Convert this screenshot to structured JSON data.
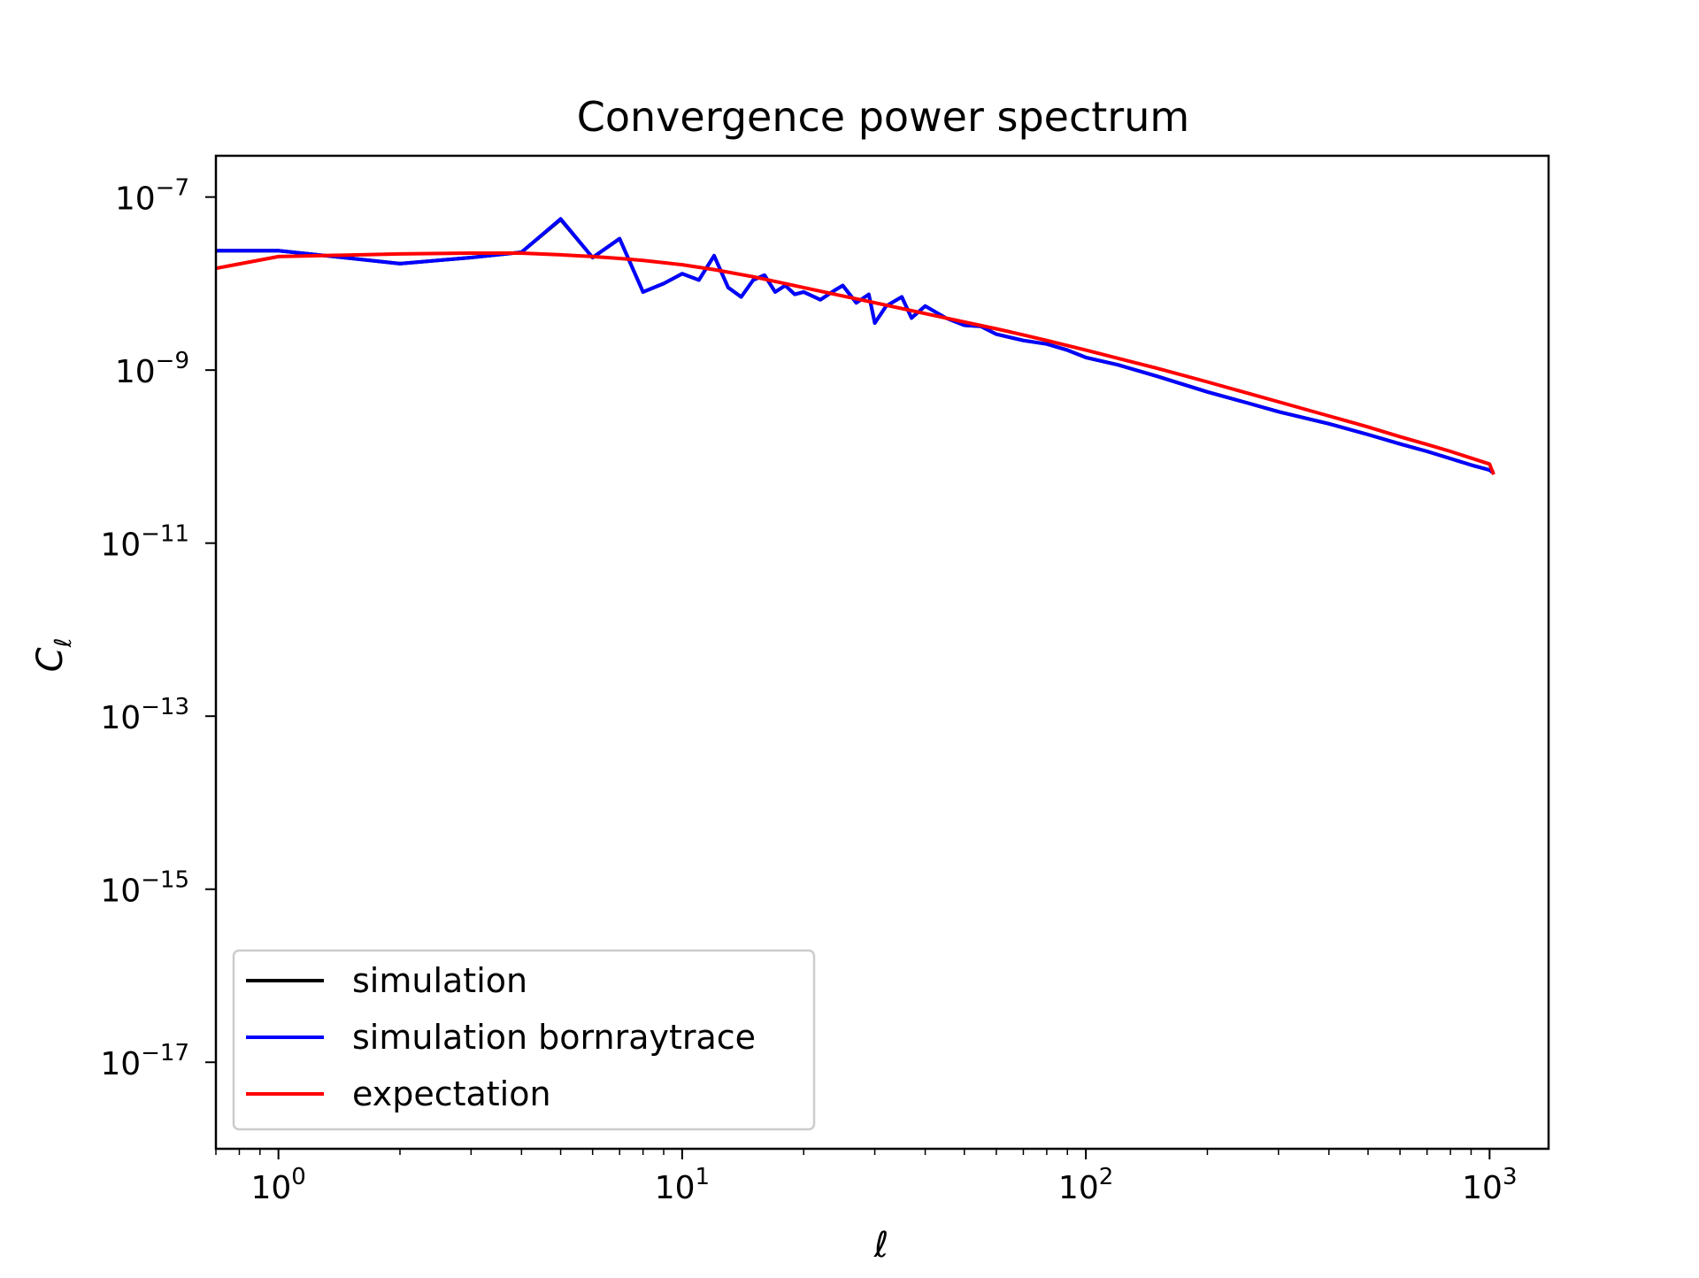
{
  "chart_data": {
    "type": "line",
    "title": "Convergence power spectrum",
    "xlabel": "ℓ",
    "ylabel": "Cℓ",
    "xscale": "log",
    "yscale": "log",
    "xlim": [
      0.7,
      1400
    ],
    "ylim": [
      1e-18,
      3e-07
    ],
    "grid": false,
    "legend_position": "lower-left",
    "x_ticks": [
      {
        "base": "10",
        "exp": "0",
        "value": 1
      },
      {
        "base": "10",
        "exp": "1",
        "value": 10
      },
      {
        "base": "10",
        "exp": "2",
        "value": 100
      },
      {
        "base": "10",
        "exp": "3",
        "value": 1000
      }
    ],
    "y_ticks": [
      {
        "base": "10",
        "exp": "−7",
        "value": 1e-07
      },
      {
        "base": "10",
        "exp": "−9",
        "value": 1e-09
      },
      {
        "base": "10",
        "exp": "−11",
        "value": 1e-11
      },
      {
        "base": "10",
        "exp": "−13",
        "value": 1e-13
      },
      {
        "base": "10",
        "exp": "−15",
        "value": 1e-15
      },
      {
        "base": "10",
        "exp": "−17",
        "value": 1e-17
      }
    ],
    "series": [
      {
        "name": "simulation",
        "color": "#000000",
        "x": [
          0.5,
          1,
          2,
          3,
          4,
          5,
          6,
          7,
          8,
          9,
          10,
          11,
          12,
          13,
          14,
          15,
          16,
          17,
          18,
          19,
          20,
          22,
          24,
          25,
          27,
          29,
          30,
          32,
          35,
          37,
          40,
          45,
          50,
          55,
          60,
          70,
          80,
          90,
          100,
          120,
          150,
          200,
          250,
          300,
          400,
          500,
          600,
          700,
          800,
          900,
          1000,
          1024
        ],
        "y": [
          2.4e-08,
          2.4e-08,
          1.7e-08,
          2e-08,
          2.3e-08,
          5.5e-08,
          2e-08,
          3.3e-08,
          8e-09,
          1e-08,
          1.3e-08,
          1.1e-08,
          2.1e-08,
          9e-09,
          7e-09,
          1.1e-08,
          1.25e-08,
          8e-09,
          9.5e-09,
          7.5e-09,
          8e-09,
          6.5e-09,
          8.5e-09,
          9.5e-09,
          6e-09,
          7.5e-09,
          3.5e-09,
          5.5e-09,
          7e-09,
          4e-09,
          5.5e-09,
          4e-09,
          3.3e-09,
          3.2e-09,
          2.6e-09,
          2.2e-09,
          2e-09,
          1.7e-09,
          1.4e-09,
          1.15e-09,
          8.5e-10,
          5.6e-10,
          4.2e-10,
          3.3e-10,
          2.4e-10,
          1.8e-10,
          1.4e-10,
          1.15e-10,
          9.5e-11,
          8e-11,
          7e-11,
          6.6e-11
        ]
      },
      {
        "name": "simulation bornraytrace",
        "color": "#0000ff",
        "x": [
          0.5,
          1,
          2,
          3,
          4,
          5,
          6,
          7,
          8,
          9,
          10,
          11,
          12,
          13,
          14,
          15,
          16,
          17,
          18,
          19,
          20,
          22,
          24,
          25,
          27,
          29,
          30,
          32,
          35,
          37,
          40,
          45,
          50,
          55,
          60,
          70,
          80,
          90,
          100,
          120,
          150,
          200,
          250,
          300,
          400,
          500,
          600,
          700,
          800,
          900,
          1000,
          1024
        ],
        "y": [
          2.4e-08,
          2.4e-08,
          1.7e-08,
          2e-08,
          2.3e-08,
          5.6e-08,
          2e-08,
          3.3e-08,
          8e-09,
          1e-08,
          1.3e-08,
          1.1e-08,
          2.1e-08,
          9e-09,
          7e-09,
          1.1e-08,
          1.25e-08,
          8e-09,
          9.5e-09,
          7.5e-09,
          8e-09,
          6.5e-09,
          8.5e-09,
          9.5e-09,
          6e-09,
          7.5e-09,
          3.5e-09,
          5.5e-09,
          7e-09,
          4e-09,
          5.5e-09,
          4e-09,
          3.3e-09,
          3.2e-09,
          2.6e-09,
          2.2e-09,
          2e-09,
          1.7e-09,
          1.4e-09,
          1.15e-09,
          8.5e-10,
          5.6e-10,
          4.2e-10,
          3.3e-10,
          2.4e-10,
          1.8e-10,
          1.4e-10,
          1.15e-10,
          9.5e-11,
          8e-11,
          7e-11,
          6.4e-11
        ]
      },
      {
        "name": "expectation",
        "color": "#ff0000",
        "x": [
          0.5,
          0.7,
          1,
          2,
          3,
          4,
          5,
          6,
          7,
          8,
          10,
          12,
          15,
          20,
          25,
          30,
          40,
          50,
          60,
          70,
          80,
          100,
          150,
          200,
          300,
          400,
          500,
          600,
          700,
          800,
          1000,
          1024
        ],
        "y": [
          1.2e-08,
          1.5e-08,
          2.05e-08,
          2.2e-08,
          2.25e-08,
          2.25e-08,
          2.15e-08,
          2.05e-08,
          1.95e-08,
          1.85e-08,
          1.65e-08,
          1.45e-08,
          1.2e-08,
          9e-09,
          7.2e-09,
          6e-09,
          4.5e-09,
          3.6e-09,
          3e-09,
          2.55e-09,
          2.2e-09,
          1.7e-09,
          1.05e-09,
          7.3e-10,
          4.3e-10,
          2.95e-10,
          2.2e-10,
          1.7e-10,
          1.38e-10,
          1.15e-10,
          8.2e-11,
          6.2e-11
        ]
      }
    ]
  }
}
